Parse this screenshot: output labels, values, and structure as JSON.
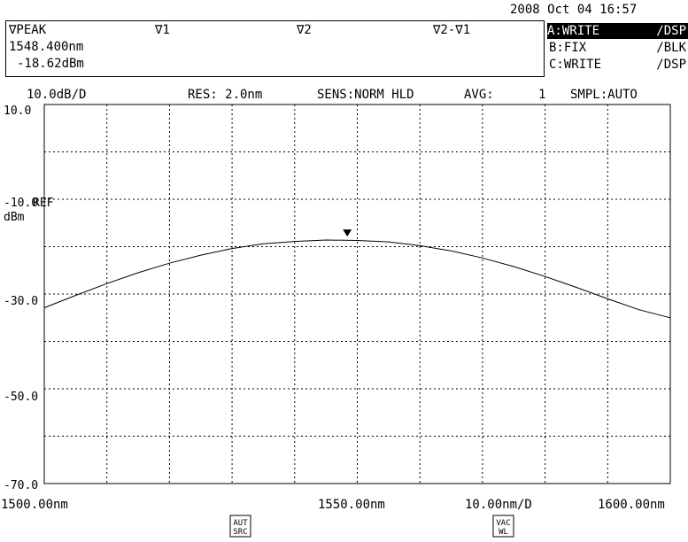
{
  "header": {
    "datetime": "2008 Oct 04 16:57"
  },
  "markers": {
    "peak_label": "∇PEAK",
    "m1_label": "∇1",
    "m2_label": "∇2",
    "diff_label": "∇2-∇1",
    "peak_wavelength": "1548.400nm",
    "peak_level": "-18.62dBm"
  },
  "traces": [
    {
      "mode": "A:WRITE",
      "display": "/DSP",
      "active": true
    },
    {
      "mode": "B:FIX",
      "display": "/BLK",
      "active": false
    },
    {
      "mode": "C:WRITE",
      "display": "/DSP",
      "active": false
    }
  ],
  "status": {
    "scale": "10.0dB/D",
    "resolution": "RES: 2.0nm",
    "sensitivity": "SENS:NORM HLD",
    "average_label": "AVG:",
    "average_value": "1",
    "sampling": "SMPL:AUTO"
  },
  "y_axis": {
    "ticks": [
      "10.0",
      "-10.0",
      "-30.0",
      "-50.0",
      "-70.0"
    ],
    "ref_label": "REF",
    "unit": "dBm"
  },
  "x_axis": {
    "start": "1500.00nm",
    "center": "1550.00nm",
    "span_per_div": "10.00nm/D",
    "stop": "1600.00nm"
  },
  "indicators": {
    "auto_source": "AUT SRC",
    "vacuum_wl": "VAC WL"
  },
  "chart_data": {
    "type": "line",
    "x_range_nm": [
      1500,
      1600
    ],
    "y_range_dbm": [
      -70,
      10
    ],
    "grid": true,
    "peak_marker": {
      "x_nm": 1548.4,
      "y_dbm": -18.62
    },
    "series": [
      {
        "x": [
          1500,
          1505,
          1510,
          1515,
          1520,
          1525,
          1530,
          1535,
          1540,
          1545,
          1550,
          1555,
          1560,
          1565,
          1570,
          1575,
          1580,
          1585,
          1590,
          1595,
          1600
        ],
        "y": [
          -32.9,
          -30.3,
          -27.8,
          -25.5,
          -23.5,
          -21.8,
          -20.4,
          -19.4,
          -18.9,
          -18.6,
          -18.7,
          -19.0,
          -19.8,
          -20.9,
          -22.4,
          -24.2,
          -26.3,
          -28.6,
          -31.0,
          -33.3,
          -35.0
        ]
      }
    ]
  }
}
